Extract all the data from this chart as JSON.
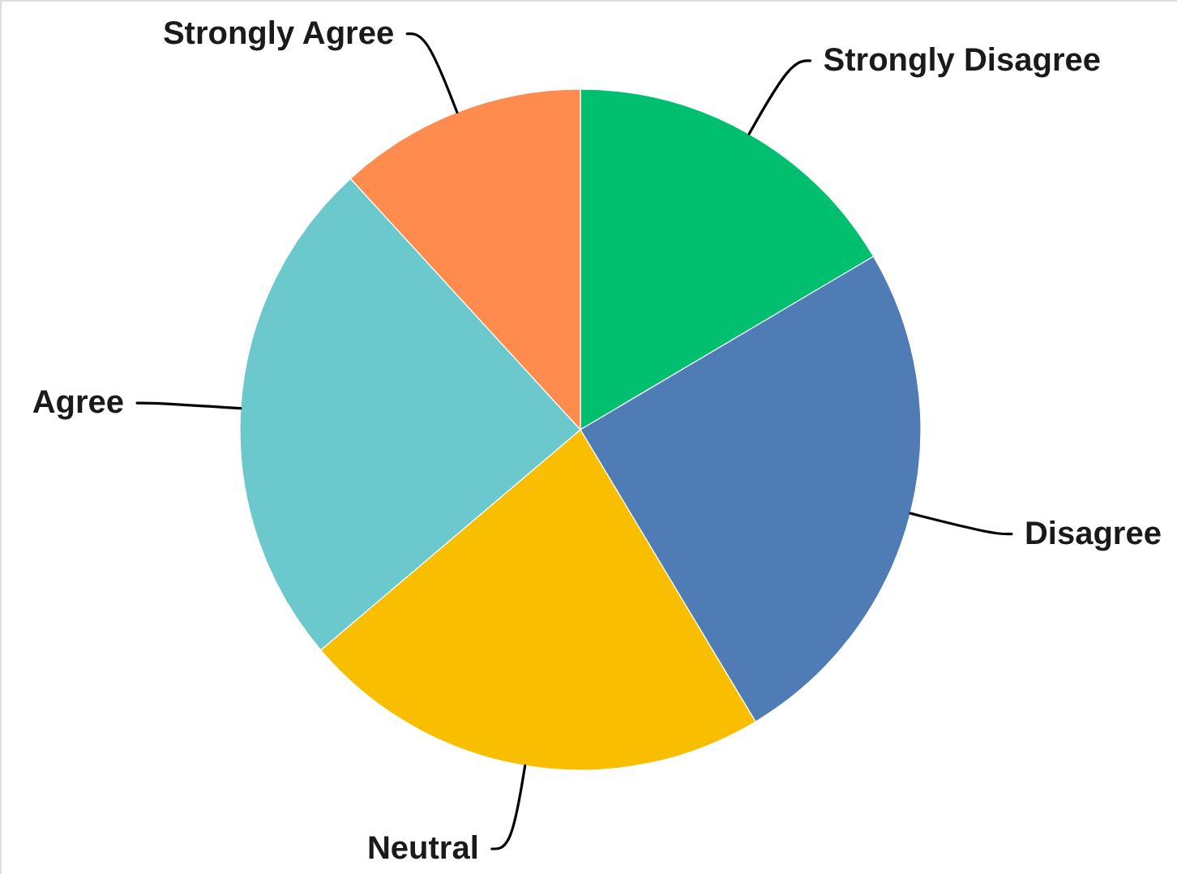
{
  "chart_data": {
    "type": "pie",
    "categories": [
      "Strongly Disagree",
      "Disagree",
      "Neutral",
      "Agree",
      "Strongly Agree"
    ],
    "values": [
      16.5,
      24.9,
      22.4,
      24.4,
      11.8
    ],
    "colors": [
      "#00bf6f",
      "#507cb6",
      "#f9be00",
      "#6bc8cd",
      "#ff8b4f"
    ]
  }
}
